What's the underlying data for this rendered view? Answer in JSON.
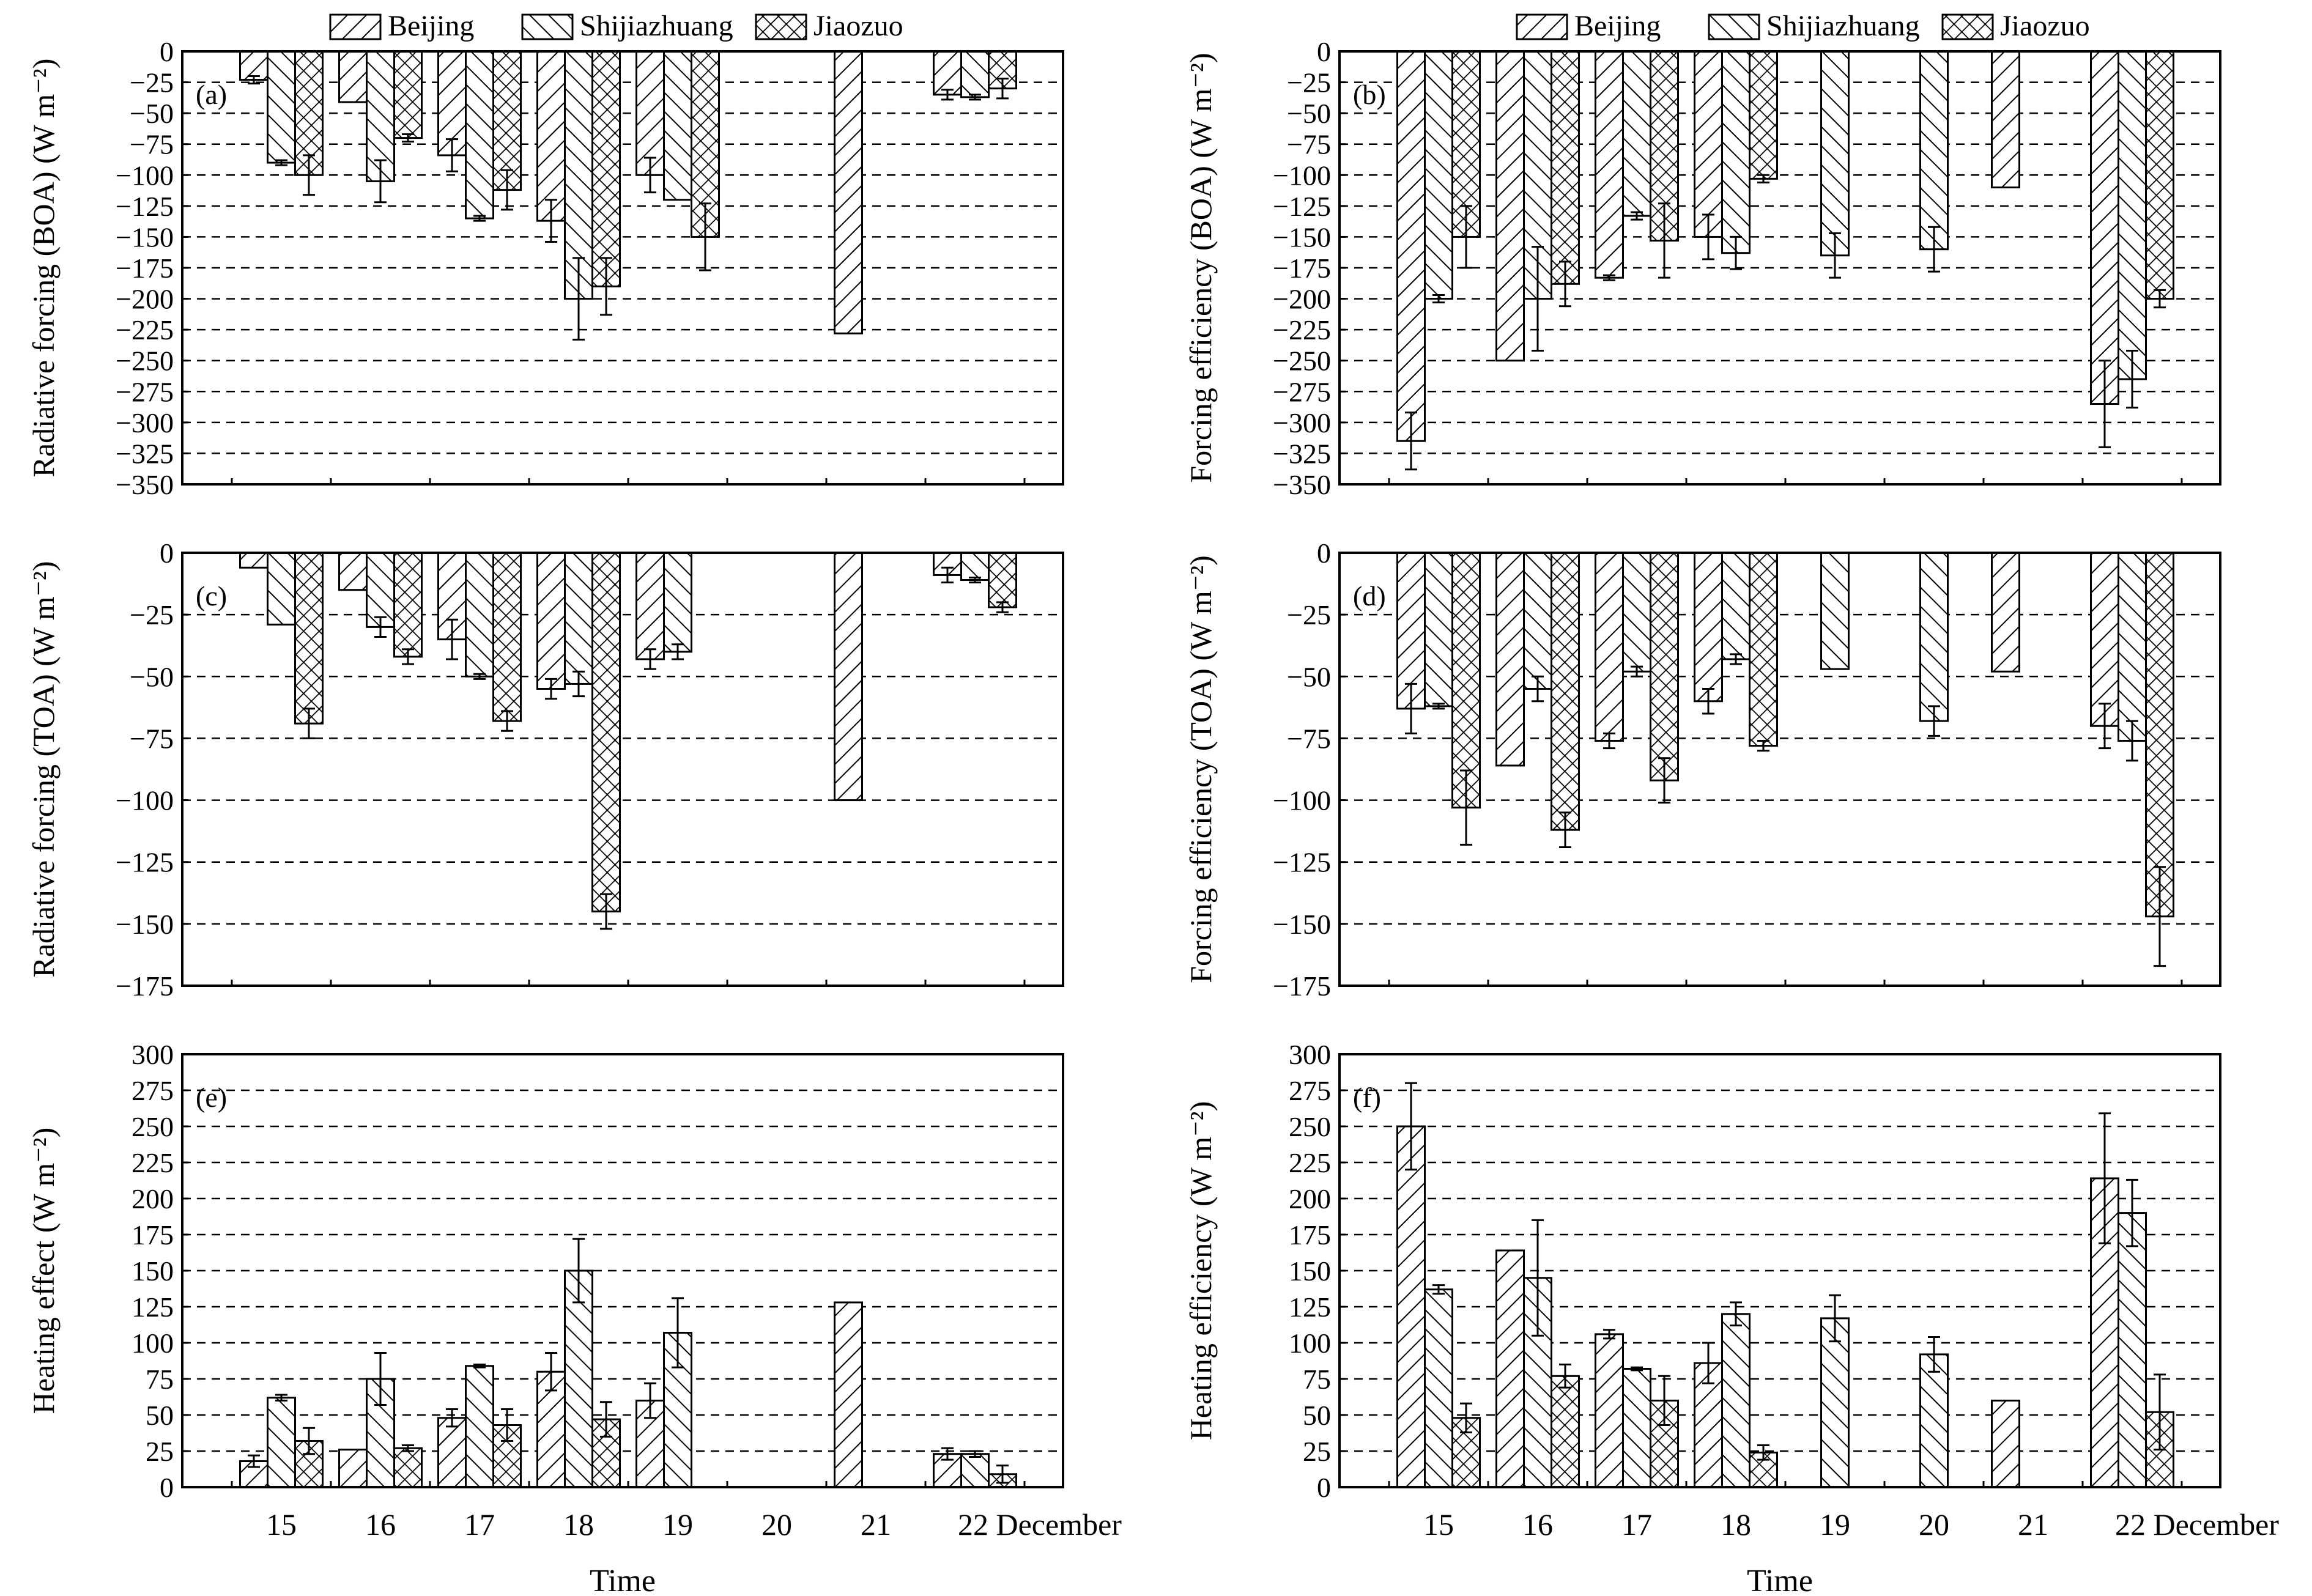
{
  "legend": [
    {
      "name": "Beijing",
      "pattern": "fwd"
    },
    {
      "name": "Shijiazhuang",
      "pattern": "back"
    },
    {
      "name": "Jiaozuo",
      "pattern": "cross"
    }
  ],
  "x_axis": {
    "categories": [
      "15",
      "16",
      "17",
      "18",
      "19",
      "20",
      "21",
      "22"
    ],
    "month_label": "December",
    "title": "Time"
  },
  "chart_data": [
    {
      "id": "a",
      "panel_label": "(a)",
      "type": "bar",
      "ylabel": "Radiative forcing (BOA) (W m⁻²)",
      "ylim": [
        -350,
        0
      ],
      "tick_step": 25,
      "grid": "dashed-horizontal",
      "categories": [
        "15",
        "16",
        "17",
        "18",
        "19",
        "20",
        "21",
        "22"
      ],
      "series": [
        {
          "name": "Beijing",
          "values": [
            -23,
            -41,
            -84,
            -137,
            -100,
            null,
            -228,
            -35
          ],
          "errors": [
            3,
            0,
            13,
            17,
            14,
            null,
            0,
            4
          ]
        },
        {
          "name": "Shijiazhuang",
          "values": [
            -90,
            -105,
            -135,
            -200,
            -120,
            null,
            null,
            -37
          ],
          "errors": [
            2,
            17,
            2,
            33,
            0,
            null,
            null,
            2
          ]
        },
        {
          "name": "Jiaozuo",
          "values": [
            -100,
            -70,
            -112,
            -190,
            -150,
            null,
            null,
            -30
          ],
          "errors": [
            16,
            3,
            16,
            23,
            27,
            null,
            null,
            8
          ]
        }
      ]
    },
    {
      "id": "b",
      "panel_label": "(b)",
      "type": "bar",
      "ylabel": "Forcing efficiency (BOA) (W m⁻²)",
      "ylim": [
        -350,
        0
      ],
      "tick_step": 25,
      "grid": "dashed-horizontal",
      "categories": [
        "15",
        "16",
        "17",
        "18",
        "19",
        "20",
        "21",
        "22"
      ],
      "series": [
        {
          "name": "Beijing",
          "values": [
            -315,
            -250,
            -183,
            -150,
            null,
            null,
            -110,
            -285
          ],
          "errors": [
            23,
            0,
            2,
            18,
            null,
            null,
            0,
            35
          ]
        },
        {
          "name": "Shijiazhuang",
          "values": [
            -200,
            -200,
            -133,
            -163,
            -165,
            -160,
            null,
            -265
          ],
          "errors": [
            3,
            42,
            3,
            13,
            18,
            18,
            null,
            23
          ]
        },
        {
          "name": "Jiaozuo",
          "values": [
            -150,
            -188,
            -153,
            -103,
            null,
            null,
            null,
            -200
          ],
          "errors": [
            25,
            18,
            30,
            3,
            null,
            null,
            null,
            7
          ]
        }
      ]
    },
    {
      "id": "c",
      "panel_label": "(c)",
      "type": "bar",
      "ylabel": "Radiative forcing (TOA) (W m⁻²)",
      "ylim": [
        -175,
        0
      ],
      "tick_step": 25,
      "grid": "dashed-horizontal",
      "categories": [
        "15",
        "16",
        "17",
        "18",
        "19",
        "20",
        "21",
        "22"
      ],
      "series": [
        {
          "name": "Beijing",
          "values": [
            -6,
            -15,
            -35,
            -55,
            -43,
            null,
            -100,
            -9
          ],
          "errors": [
            0,
            0,
            8,
            4,
            4,
            null,
            0,
            3
          ]
        },
        {
          "name": "Shijiazhuang",
          "values": [
            -29,
            -30,
            -50,
            -53,
            -40,
            null,
            null,
            -11
          ],
          "errors": [
            0,
            4,
            1,
            5,
            3,
            null,
            null,
            1
          ]
        },
        {
          "name": "Jiaozuo",
          "values": [
            -69,
            -42,
            -68,
            -145,
            null,
            null,
            null,
            -22
          ],
          "errors": [
            6,
            3,
            4,
            7,
            null,
            null,
            null,
            2
          ]
        }
      ]
    },
    {
      "id": "d",
      "panel_label": "(d)",
      "type": "bar",
      "ylabel": "Forcing efficiency (TOA) (W m⁻²)",
      "ylim": [
        -175,
        0
      ],
      "tick_step": 25,
      "grid": "dashed-horizontal",
      "categories": [
        "15",
        "16",
        "17",
        "18",
        "19",
        "20",
        "21",
        "22"
      ],
      "series": [
        {
          "name": "Beijing",
          "values": [
            -63,
            -86,
            -76,
            -60,
            null,
            null,
            -48,
            -70
          ],
          "errors": [
            10,
            0,
            3,
            5,
            null,
            null,
            0,
            9
          ]
        },
        {
          "name": "Shijiazhuang",
          "values": [
            -62,
            -55,
            -48,
            -43,
            -47,
            -68,
            null,
            -76
          ],
          "errors": [
            1,
            5,
            2,
            2,
            0,
            6,
            null,
            8
          ]
        },
        {
          "name": "Jiaozuo",
          "values": [
            -103,
            -112,
            -92,
            -78,
            null,
            null,
            null,
            -147
          ],
          "errors": [
            15,
            7,
            9,
            2,
            null,
            null,
            null,
            20
          ]
        }
      ]
    },
    {
      "id": "e",
      "panel_label": "(e)",
      "type": "bar",
      "ylabel": "Heating effect (W m⁻²)",
      "ylim": [
        0,
        300
      ],
      "tick_step": 25,
      "grid": "dashed-horizontal",
      "categories": [
        "15",
        "16",
        "17",
        "18",
        "19",
        "20",
        "21",
        "22"
      ],
      "series": [
        {
          "name": "Beijing",
          "values": [
            18,
            26,
            48,
            80,
            60,
            null,
            128,
            23
          ],
          "errors": [
            4,
            0,
            6,
            13,
            12,
            null,
            0,
            4
          ]
        },
        {
          "name": "Shijiazhuang",
          "values": [
            62,
            75,
            84,
            150,
            107,
            null,
            null,
            23
          ],
          "errors": [
            2,
            18,
            1,
            22,
            24,
            null,
            null,
            2
          ]
        },
        {
          "name": "Jiaozuo",
          "values": [
            32,
            27,
            43,
            47,
            null,
            null,
            null,
            9
          ],
          "errors": [
            9,
            2,
            11,
            12,
            null,
            null,
            null,
            6
          ]
        }
      ]
    },
    {
      "id": "f",
      "panel_label": "(f)",
      "type": "bar",
      "ylabel": "Heating efficiency (W m⁻²)",
      "ylim": [
        0,
        300
      ],
      "tick_step": 25,
      "grid": "dashed-horizontal",
      "categories": [
        "15",
        "16",
        "17",
        "18",
        "19",
        "20",
        "21",
        "22"
      ],
      "series": [
        {
          "name": "Beijing",
          "values": [
            250,
            164,
            106,
            86,
            null,
            null,
            60,
            214
          ],
          "errors": [
            30,
            0,
            3,
            14,
            null,
            null,
            0,
            45
          ]
        },
        {
          "name": "Shijiazhuang",
          "values": [
            137,
            145,
            82,
            120,
            117,
            92,
            null,
            190
          ],
          "errors": [
            3,
            40,
            1,
            8,
            16,
            12,
            null,
            23
          ]
        },
        {
          "name": "Jiaozuo",
          "values": [
            48,
            77,
            60,
            24,
            null,
            null,
            null,
            52
          ],
          "errors": [
            10,
            8,
            17,
            5,
            null,
            null,
            null,
            26
          ]
        }
      ]
    }
  ]
}
